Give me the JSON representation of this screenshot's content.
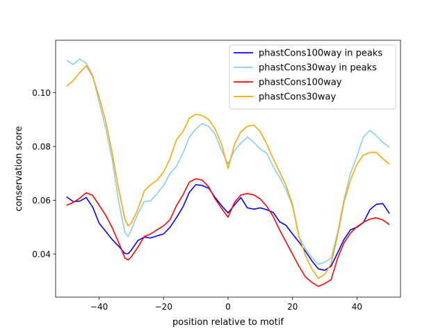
{
  "chart_data": {
    "type": "line",
    "title": "",
    "xlabel": "position relative to motif",
    "ylabel": "conservation score",
    "xlim": [
      -53.5,
      53.5
    ],
    "ylim": [
      0.024,
      0.1195
    ],
    "xticks": [
      -40,
      -20,
      0,
      20,
      40
    ],
    "xtick_labels": [
      "−40",
      "−20",
      "0",
      "20",
      "40"
    ],
    "yticks": [
      0.04,
      0.06,
      0.08,
      0.1
    ],
    "ytick_labels": [
      "0.04",
      "0.06",
      "0.08",
      "0.10"
    ],
    "grid": false,
    "legend_position": "top-right",
    "series": [
      {
        "name": "phastCons100way in peaks",
        "color": "#0000ff",
        "x": [
          -50,
          -48,
          -46,
          -44,
          -42,
          -40,
          -38,
          -36,
          -34,
          -32,
          -31,
          -30,
          -28,
          -26,
          -24,
          -22,
          -20,
          -18,
          -16,
          -14,
          -12,
          -10,
          -8,
          -6,
          -4,
          -2,
          0,
          2,
          4,
          6,
          8,
          10,
          12,
          14,
          16,
          18,
          20,
          22,
          24,
          26,
          28,
          30,
          32,
          34,
          36,
          38,
          40,
          42,
          44,
          46,
          48,
          50
        ],
        "values": [
          0.0612,
          0.0595,
          0.0597,
          0.061,
          0.0575,
          0.0515,
          0.0485,
          0.0455,
          0.043,
          0.0402,
          0.0401,
          0.0415,
          0.045,
          0.0463,
          0.046,
          0.0468,
          0.0475,
          0.05,
          0.0535,
          0.0575,
          0.063,
          0.0658,
          0.0655,
          0.0645,
          0.061,
          0.058,
          0.0553,
          0.0583,
          0.061,
          0.0572,
          0.0567,
          0.0572,
          0.0565,
          0.0555,
          0.052,
          0.0507,
          0.0475,
          0.0445,
          0.041,
          0.0375,
          0.0345,
          0.034,
          0.0355,
          0.0405,
          0.0455,
          0.049,
          0.05,
          0.0517,
          0.0565,
          0.0585,
          0.0588,
          0.0552
        ]
      },
      {
        "name": "phastCons30way in peaks",
        "color": "#87ceeb",
        "x": [
          -50,
          -48,
          -46,
          -44,
          -42,
          -40,
          -38,
          -36,
          -34,
          -32,
          -31,
          -30,
          -28,
          -26,
          -24,
          -22,
          -20,
          -18,
          -16,
          -14,
          -12,
          -10,
          -8,
          -6,
          -4,
          -2,
          0,
          2,
          4,
          6,
          8,
          10,
          12,
          14,
          16,
          18,
          20,
          22,
          24,
          26,
          28,
          30,
          32,
          34,
          36,
          38,
          40,
          42,
          44,
          46,
          48,
          50
        ],
        "values": [
          0.112,
          0.1105,
          0.1125,
          0.111,
          0.1065,
          0.0965,
          0.087,
          0.0755,
          0.06,
          0.048,
          0.0465,
          0.049,
          0.055,
          0.0595,
          0.0598,
          0.0625,
          0.0655,
          0.07,
          0.0726,
          0.0775,
          0.0835,
          0.0865,
          0.0885,
          0.0875,
          0.0845,
          0.0785,
          0.0735,
          0.0785,
          0.0813,
          0.0835,
          0.0815,
          0.079,
          0.0775,
          0.0725,
          0.0685,
          0.064,
          0.0578,
          0.0465,
          0.042,
          0.0388,
          0.0362,
          0.037,
          0.0385,
          0.048,
          0.0605,
          0.07,
          0.0765,
          0.0835,
          0.086,
          0.084,
          0.0815,
          0.0798
        ]
      },
      {
        "name": "phastCons100way",
        "color": "#ff0000",
        "x": [
          -50,
          -48,
          -46,
          -44,
          -42,
          -40,
          -38,
          -36,
          -34,
          -32,
          -31,
          -30,
          -28,
          -26,
          -24,
          -22,
          -20,
          -18,
          -16,
          -14,
          -12,
          -10,
          -8,
          -6,
          -4,
          -2,
          0,
          2,
          4,
          6,
          8,
          10,
          12,
          14,
          16,
          18,
          20,
          22,
          24,
          26,
          28,
          30,
          32,
          34,
          36,
          38,
          40,
          42,
          44,
          46,
          48,
          50
        ],
        "values": [
          0.0582,
          0.0592,
          0.0608,
          0.0628,
          0.0618,
          0.0582,
          0.0545,
          0.05,
          0.0445,
          0.0385,
          0.0378,
          0.039,
          0.0425,
          0.0465,
          0.0475,
          0.049,
          0.0505,
          0.0528,
          0.058,
          0.062,
          0.0668,
          0.068,
          0.0675,
          0.065,
          0.0605,
          0.057,
          0.0537,
          0.0592,
          0.062,
          0.0625,
          0.062,
          0.0605,
          0.0578,
          0.054,
          0.049,
          0.0445,
          0.04,
          0.0355,
          0.0315,
          0.0295,
          0.028,
          0.029,
          0.0305,
          0.0385,
          0.0442,
          0.0478,
          0.0502,
          0.0518,
          0.053,
          0.0535,
          0.0527,
          0.051
        ]
      },
      {
        "name": "phastCons30way",
        "color": "#ffa500",
        "x": [
          -50,
          -48,
          -46,
          -44,
          -42,
          -40,
          -38,
          -36,
          -34,
          -32,
          -31,
          -30,
          -28,
          -26,
          -24,
          -22,
          -20,
          -18,
          -16,
          -14,
          -12,
          -10,
          -8,
          -6,
          -4,
          -2,
          0,
          2,
          4,
          6,
          8,
          10,
          12,
          14,
          16,
          18,
          20,
          22,
          24,
          26,
          28,
          30,
          32,
          34,
          36,
          38,
          40,
          42,
          44,
          46,
          48,
          50
        ],
        "values": [
          0.1025,
          0.1045,
          0.1075,
          0.11,
          0.106,
          0.0985,
          0.0895,
          0.078,
          0.0645,
          0.053,
          0.0505,
          0.0515,
          0.0565,
          0.0635,
          0.0658,
          0.0675,
          0.0705,
          0.0755,
          0.0825,
          0.0855,
          0.0905,
          0.092,
          0.0915,
          0.09,
          0.0865,
          0.0808,
          0.0718,
          0.0808,
          0.0855,
          0.0875,
          0.088,
          0.0855,
          0.081,
          0.0755,
          0.0705,
          0.0655,
          0.0585,
          0.0465,
          0.0395,
          0.0345,
          0.031,
          0.0325,
          0.0365,
          0.047,
          0.0595,
          0.0675,
          0.0735,
          0.0768,
          0.0778,
          0.0778,
          0.0755,
          0.0735
        ]
      }
    ]
  }
}
